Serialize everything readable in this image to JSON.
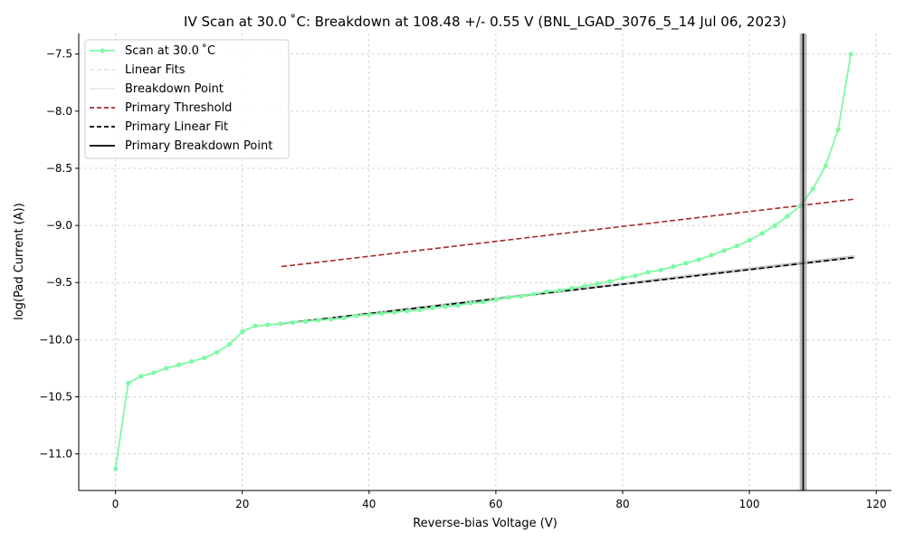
{
  "chart_data": {
    "type": "line",
    "title": "IV Scan at 30.0 ˚C: Breakdown at 108.48 +/- 0.55 V (BNL_LGAD_3076_5_14 Jul 06, 2023)",
    "xlabel": "Reverse-bias Voltage (V)",
    "ylabel": "log(Pad Current (A))",
    "xlim": [
      -5.8,
      122.4
    ],
    "ylim": [
      -11.32,
      -7.32
    ],
    "xticks": [
      0,
      20,
      40,
      60,
      80,
      100,
      120
    ],
    "yticks": [
      -11.0,
      -10.5,
      -10.0,
      -9.5,
      -9.0,
      -8.5,
      -8.0,
      -7.5
    ],
    "xtick_labels": [
      "0",
      "20",
      "40",
      "60",
      "80",
      "100",
      "120"
    ],
    "ytick_labels": [
      "−11.0",
      "−10.5",
      "−10.0",
      "−9.5",
      "−9.0",
      "−8.5",
      "−8.0",
      "−7.5"
    ],
    "grid": true,
    "legend_position": "top-left",
    "legend": [
      {
        "label": "Scan at 30.0 ˚C",
        "style": "line-marker",
        "color": "#7dfaa4"
      },
      {
        "label": "Linear Fits",
        "style": "dashed",
        "color": "#e6e6e6"
      },
      {
        "label": "Breakdown Point",
        "style": "solid",
        "color": "#e6e6e6"
      },
      {
        "label": "Primary Threshold",
        "style": "dashed",
        "color": "#a52a2a"
      },
      {
        "label": "Primary Linear Fit",
        "style": "dashed",
        "color": "#000000"
      },
      {
        "label": "Primary Breakdown Point",
        "style": "solid",
        "color": "#000000"
      }
    ],
    "series": [
      {
        "name": "Scan at 30.0 ˚C",
        "color": "#7dfaa4",
        "x": [
          0,
          2,
          4,
          6,
          8,
          10,
          12,
          14,
          16,
          18,
          20,
          22,
          24,
          26,
          28,
          30,
          32,
          34,
          36,
          38,
          40,
          42,
          44,
          46,
          48,
          50,
          52,
          54,
          56,
          58,
          60,
          62,
          64,
          66,
          68,
          70,
          72,
          74,
          76,
          78,
          80,
          82,
          84,
          86,
          88,
          90,
          92,
          94,
          96,
          98,
          100,
          102,
          104,
          106,
          108,
          110,
          112,
          114,
          116
        ],
        "y": [
          -11.13,
          -10.38,
          -10.32,
          -10.29,
          -10.25,
          -10.22,
          -10.19,
          -10.16,
          -10.11,
          -10.04,
          -9.93,
          -9.88,
          -9.87,
          -9.86,
          -9.85,
          -9.84,
          -9.83,
          -9.82,
          -9.81,
          -9.79,
          -9.78,
          -9.77,
          -9.76,
          -9.75,
          -9.74,
          -9.72,
          -9.71,
          -9.7,
          -9.68,
          -9.67,
          -9.65,
          -9.63,
          -9.62,
          -9.6,
          -9.58,
          -9.57,
          -9.55,
          -9.53,
          -9.51,
          -9.49,
          -9.46,
          -9.44,
          -9.41,
          -9.39,
          -9.36,
          -9.33,
          -9.3,
          -9.26,
          -9.22,
          -9.18,
          -9.13,
          -9.07,
          -9.0,
          -8.92,
          -8.83,
          -8.68,
          -8.48,
          -8.16,
          -7.5
        ]
      }
    ],
    "threshold_line": {
      "name": "Primary Threshold",
      "color": "#a52a2a",
      "x": [
        26.2,
        116.6
      ],
      "y": [
        -9.36,
        -8.77
      ]
    },
    "primary_fit": {
      "name": "Primary Linear Fit",
      "color": "#000000",
      "x": [
        26.2,
        116.6
      ],
      "y": [
        -9.86,
        -9.28
      ]
    },
    "fit_band": {
      "x": [
        26.2,
        116.6
      ],
      "y_low": [
        -9.87,
        -9.29
      ],
      "y_high": [
        -9.85,
        -9.26
      ]
    },
    "breakdown": {
      "name": "Primary Breakdown Point",
      "x": 108.48,
      "uncertainty": 0.55,
      "color": "#000000"
    }
  }
}
